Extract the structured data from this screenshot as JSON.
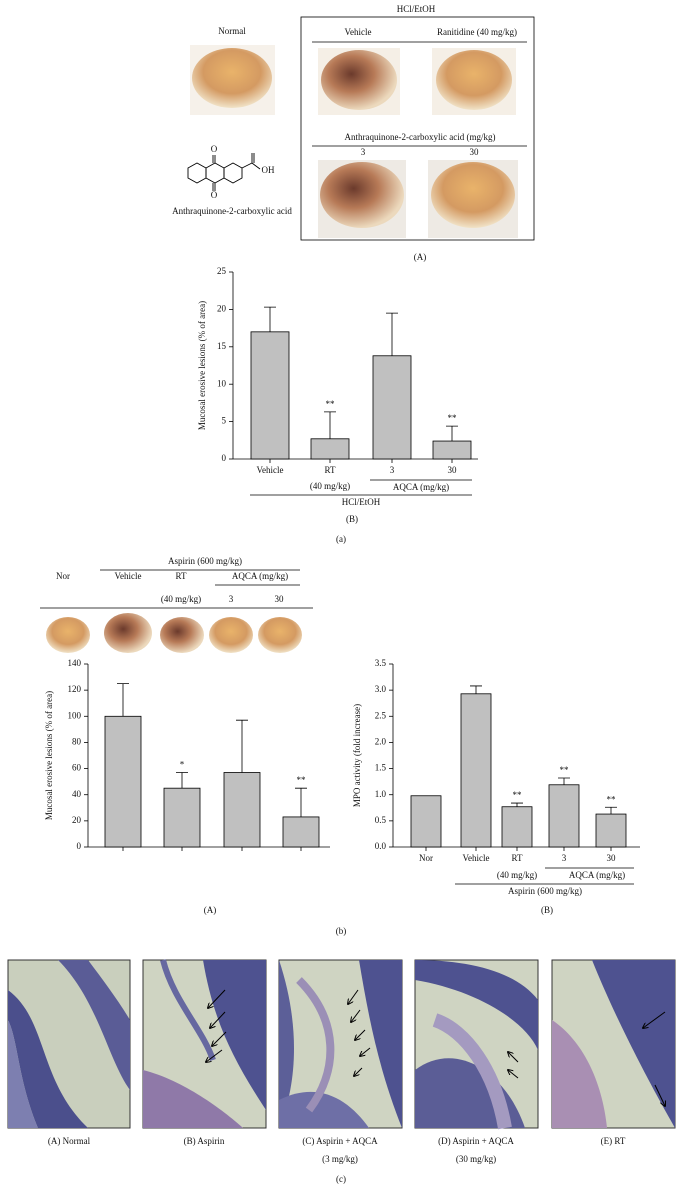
{
  "figure_a": {
    "normal_label": "Normal",
    "treatment_label": "HCl/EtOH",
    "vehicle_label": "Vehicle",
    "ranitidine_label": "Ranitidine (40 mg/kg)",
    "dose_header": "Anthraquinone-2-carboxylic acid (mg/kg)",
    "dose_low": "3",
    "dose_high": "30",
    "structure_atoms": [
      "O",
      "O",
      "OH"
    ],
    "structure_name": "Anthraquinone-2-carboxylic acid",
    "panel_label": "(A)",
    "figure_label": "(a)"
  },
  "figure_b_header": {
    "normal_label": "Nor",
    "treatment_label": "Aspirin (600 mg/kg)",
    "vehicle_label": "Vehicle",
    "rt_label": "RT",
    "rt_dose": "(40 mg/kg)",
    "group_label": "AQCA (mg/kg)",
    "dose_low": "3",
    "dose_high": "30",
    "figure_label": "(b)"
  },
  "chart_data": [
    {
      "type": "bar",
      "ylabel": "Mucosal erosive lesions (% of area)",
      "categories": [
        "Vehicle",
        "RT",
        "3",
        "30"
      ],
      "values": [
        17,
        2.7,
        13.8,
        2.4
      ],
      "errors": [
        3.3,
        3.6,
        5.7,
        2.0
      ],
      "annotations": [
        null,
        "**",
        null,
        "**"
      ],
      "color": "#c0c0c0",
      "ylim": [
        0,
        25
      ],
      "yticks": [
        0,
        5,
        10,
        15,
        20,
        25
      ],
      "sublabel": "(40 mg/kg)",
      "group_label": "AQCA (mg/kg)",
      "treatment_label": "HCl/EtOH",
      "panel_label": "(B)"
    },
    {
      "type": "bar",
      "ylabel": "Mucosal erosive lesions (% of area)",
      "categories": [
        null,
        null,
        null,
        null
      ],
      "values": [
        100,
        45,
        57,
        23
      ],
      "errors": [
        25,
        12,
        40,
        22
      ],
      "annotations": [
        null,
        "*",
        null,
        "**"
      ],
      "color": "#c0c0c0",
      "ylim": [
        0,
        140
      ],
      "yticks": [
        0,
        20,
        40,
        60,
        80,
        100,
        120,
        140
      ],
      "panel_label": "(A)"
    },
    {
      "type": "bar",
      "ylabel": "MPO activity (fold increase)",
      "categories": [
        "Nor",
        "Vehicle",
        "RT",
        "3",
        "30"
      ],
      "values": [
        0.98,
        2.93,
        0.77,
        1.19,
        0.63
      ],
      "errors": [
        null,
        0.15,
        0.07,
        0.13,
        0.13
      ],
      "annotations": [
        null,
        null,
        "**",
        "**",
        "**"
      ],
      "color": "#c0c0c0",
      "ylim": [
        0,
        3.5
      ],
      "yticks": [
        {
          "value": 0,
          "label": "0.0"
        },
        {
          "value": 0.5,
          "label": "0.5"
        },
        {
          "value": 1,
          "label": "1.0"
        },
        {
          "value": 1.5,
          "label": "1.5"
        },
        {
          "value": 2,
          "label": "2.0"
        },
        {
          "value": 2.5,
          "label": "2.5"
        },
        {
          "value": 3,
          "label": "3.0"
        },
        {
          "value": 3.5,
          "label": "3.5"
        }
      ],
      "sublabel": "(40 mg/kg)",
      "group_label": "AQCA (mg/kg)",
      "treatment_label": "Aspirin (600 mg/kg)",
      "panel_label": "(B)"
    }
  ],
  "figure_c": {
    "captions": [
      "(A) Normal",
      "(B) Aspirin",
      "(C) Aspirin + AQCA",
      "(D) Aspirin + AQCA",
      "(E) RT"
    ],
    "subcaptions": [
      null,
      null,
      "(3 mg/kg)",
      "(30 mg/kg)",
      null
    ],
    "figure_label": "(c)"
  }
}
